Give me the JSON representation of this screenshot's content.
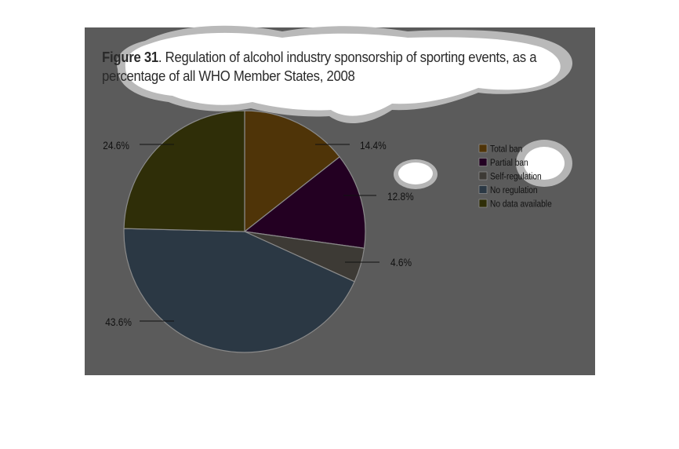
{
  "title": {
    "figure_label": "Figure 31",
    "text": ". Regulation of alcohol industry sponsorship of sporting events, as a percentage of all WHO Member States, 2008"
  },
  "chart_data": {
    "type": "pie",
    "title": "Figure 31. Regulation of alcohol industry sponsorship of sporting events, as a percentage of all WHO Member States, 2008",
    "categories": [
      "Total ban",
      "Partial ban",
      "Self-regulation",
      "No regulation",
      "No data available"
    ],
    "values": [
      14.4,
      12.8,
      4.6,
      43.6,
      24.6
    ],
    "labels": [
      "14.4%",
      "12.8%",
      "4.6%",
      "43.6%",
      "24.6%"
    ],
    "colors": [
      "#4f3408",
      "#230022",
      "#3d3a35",
      "#2b3844",
      "#2f2e08"
    ],
    "start": "12 o'clock",
    "direction": "clockwise",
    "legend_placement": "right"
  }
}
